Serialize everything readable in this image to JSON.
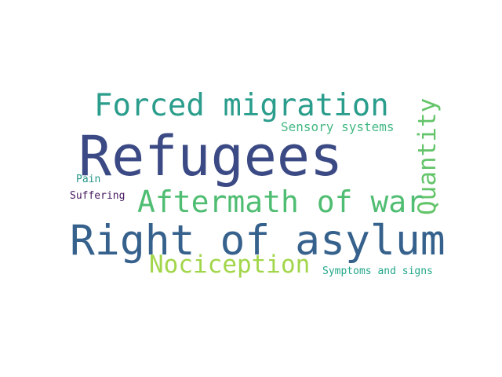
{
  "word_cloud": {
    "words": [
      {
        "text": "Refugees",
        "color": "#3b4a84"
      },
      {
        "text": "Right of asylum",
        "color": "#35618c"
      },
      {
        "text": "Forced migration",
        "color": "#2a9d8c"
      },
      {
        "text": "Aftermath of war",
        "color": "#4fbd72"
      },
      {
        "text": "Nociception",
        "color": "#a2d64a"
      },
      {
        "text": "Quantity",
        "color": "#64c46a"
      },
      {
        "text": "Sensory systems",
        "color": "#43b883"
      },
      {
        "text": "Symptoms and signs",
        "color": "#22a68a"
      },
      {
        "text": "Pain",
        "color": "#25988a"
      },
      {
        "text": "Suffering",
        "color": "#46185f"
      }
    ]
  }
}
